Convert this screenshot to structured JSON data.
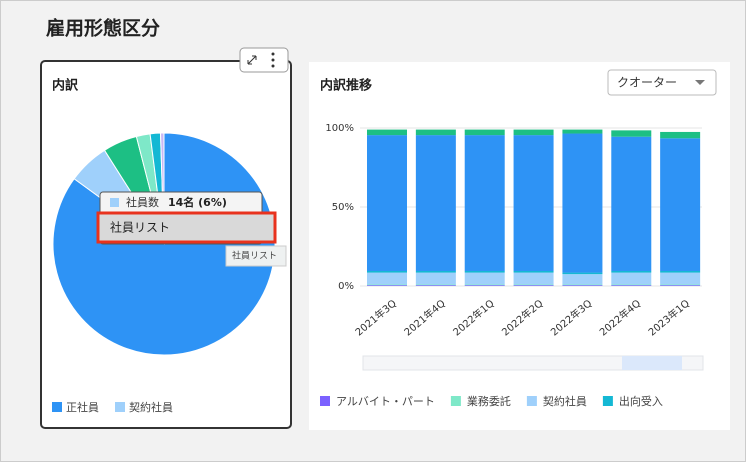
{
  "header": {
    "title": "雇用形態区分"
  },
  "left_card": {
    "title": "内訳"
  },
  "right_card": {
    "title": "内訳推移",
    "dropdown": "クオーター"
  },
  "tooltip": {
    "label": "社員数",
    "value": "14名 (6%)",
    "menu_item": "社員リスト",
    "hint": "社員リスト"
  },
  "chart_data": [
    {
      "type": "pie",
      "categories": [
        "正社員",
        "契約社員",
        null,
        null,
        null,
        null
      ],
      "values": [
        85,
        6,
        5,
        2,
        1.5,
        0.5
      ],
      "colors": [
        "#2e93f5",
        "#9fd0fb",
        "#1dbf84",
        "#7ee8c8",
        "#14b8d4",
        "#c9b8f5"
      ]
    },
    {
      "type": "bar",
      "stacked": true,
      "categories": [
        "2021年3Q",
        "2021年4Q",
        "2022年1Q",
        "2022年2Q",
        "2022年3Q",
        "2022年4Q",
        "2023年1Q"
      ],
      "series": [
        {
          "name": "アルバイト・パート",
          "color": "#7b61ff",
          "values": [
            0.5,
            0.5,
            0.5,
            0.5,
            0.5,
            0.5,
            0.5
          ]
        },
        {
          "name": "業務委託",
          "color": "#7ee8c8",
          "values": [
            0.5,
            0.5,
            0.5,
            0.5,
            0.5,
            0.5,
            0.5
          ]
        },
        {
          "name": "契約社員",
          "color": "#9fd0fb",
          "values": [
            7.5,
            7.5,
            7.5,
            7.5,
            6.5,
            7.5,
            7.5
          ]
        },
        {
          "name": "出向受入",
          "color": "#14b8d4",
          "values": [
            1,
            1,
            1,
            1,
            1,
            1,
            1
          ]
        },
        {
          "color": "#2e93f5",
          "values": [
            86,
            86,
            86,
            86,
            88,
            85,
            84
          ]
        },
        {
          "color": "#1dbf84",
          "values": [
            3.5,
            3.5,
            3.5,
            3.5,
            2.5,
            4,
            4
          ]
        }
      ],
      "ylim": [
        0,
        100
      ],
      "yticks": [
        {
          "value": 0,
          "label": "0%"
        },
        {
          "value": 50,
          "label": "50%"
        },
        {
          "value": 100,
          "label": "100%"
        }
      ],
      "grid": true
    }
  ]
}
